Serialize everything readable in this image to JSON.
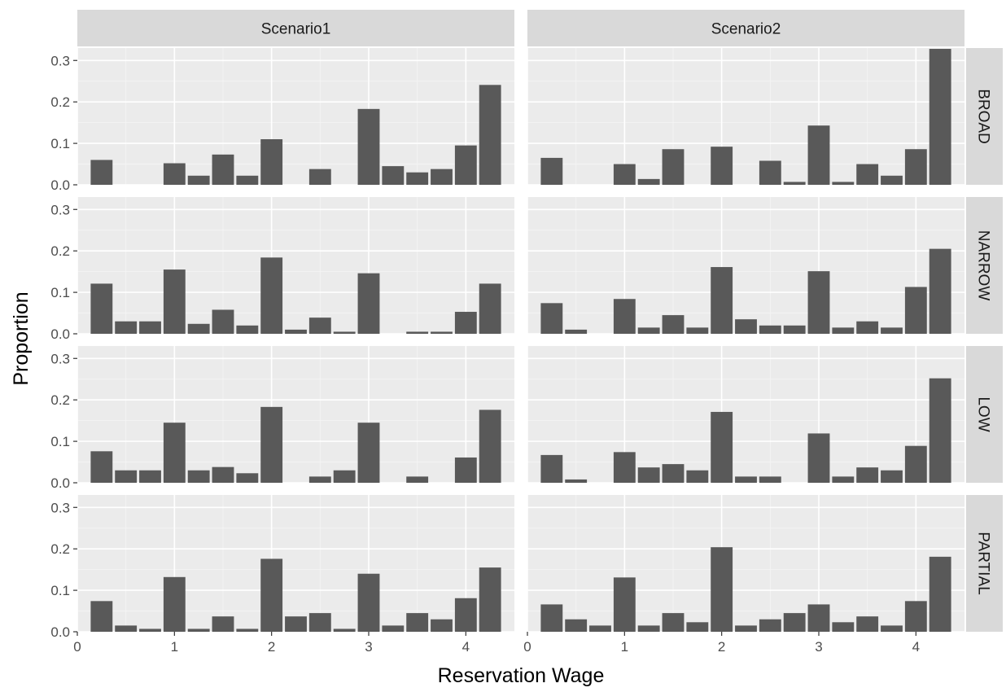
{
  "chart_data": {
    "type": "bar",
    "layout": "facet_grid",
    "xlabel": "Reservation Wage",
    "ylabel": "Proportion",
    "xlim": [
      0,
      4.5
    ],
    "ylim": [
      0,
      0.33
    ],
    "x_ticks": [
      0,
      1,
      2,
      3,
      4
    ],
    "y_ticks": [
      0.0,
      0.1,
      0.2,
      0.3
    ],
    "y_tick_labels": [
      "0.0",
      "0.1",
      "0.2",
      "0.3"
    ],
    "grid": true,
    "bar_color": "#595959",
    "bar_width": 0.225,
    "x": [
      0.25,
      0.5,
      0.75,
      1.0,
      1.25,
      1.5,
      1.75,
      2.0,
      2.25,
      2.5,
      2.75,
      3.0,
      3.25,
      3.5,
      3.75,
      4.0,
      4.25
    ],
    "columns": [
      "Scenario1",
      "Scenario2"
    ],
    "rows": [
      "BROAD",
      "NARROW",
      "LOW",
      "PARTIAL"
    ],
    "panels": [
      {
        "column": "Scenario1",
        "row": "BROAD",
        "values": [
          0.06,
          0,
          0,
          0.052,
          0.022,
          0.073,
          0.022,
          0.11,
          0,
          0.038,
          0,
          0.183,
          0.045,
          0.03,
          0.038,
          0.095,
          0.241
        ]
      },
      {
        "column": "Scenario2",
        "row": "BROAD",
        "values": [
          0.065,
          0,
          0,
          0.05,
          0.014,
          0.086,
          0,
          0.092,
          0,
          0.058,
          0.007,
          0.143,
          0.007,
          0.05,
          0.022,
          0.086,
          0.328
        ]
      },
      {
        "column": "Scenario1",
        "row": "NARROW",
        "values": [
          0.121,
          0.03,
          0.03,
          0.155,
          0.024,
          0.058,
          0.02,
          0.184,
          0.01,
          0.039,
          0.005,
          0.146,
          0,
          0.005,
          0.005,
          0.053,
          0.121
        ]
      },
      {
        "column": "Scenario2",
        "row": "NARROW",
        "values": [
          0.074,
          0.01,
          0,
          0.084,
          0.015,
          0.045,
          0.015,
          0.161,
          0.035,
          0.02,
          0.02,
          0.151,
          0.015,
          0.03,
          0.015,
          0.113,
          0.205
        ]
      },
      {
        "column": "Scenario1",
        "row": "LOW",
        "values": [
          0.076,
          0.03,
          0.03,
          0.145,
          0.03,
          0.038,
          0.023,
          0.183,
          0,
          0.015,
          0.03,
          0.145,
          0,
          0.015,
          0,
          0.061,
          0.176
        ]
      },
      {
        "column": "Scenario2",
        "row": "LOW",
        "values": [
          0.067,
          0.008,
          0,
          0.074,
          0.037,
          0.045,
          0.03,
          0.171,
          0.015,
          0.015,
          0,
          0.119,
          0.015,
          0.037,
          0.03,
          0.089,
          0.252
        ]
      },
      {
        "column": "Scenario1",
        "row": "PARTIAL",
        "values": [
          0.074,
          0.015,
          0.007,
          0.132,
          0.007,
          0.037,
          0.007,
          0.176,
          0.037,
          0.045,
          0.007,
          0.14,
          0.015,
          0.045,
          0.03,
          0.081,
          0.155
        ]
      },
      {
        "column": "Scenario2",
        "row": "PARTIAL",
        "values": [
          0.066,
          0.03,
          0.015,
          0.131,
          0.015,
          0.045,
          0.023,
          0.204,
          0.015,
          0.03,
          0.045,
          0.066,
          0.023,
          0.037,
          0.015,
          0.074,
          0.181
        ]
      }
    ]
  }
}
